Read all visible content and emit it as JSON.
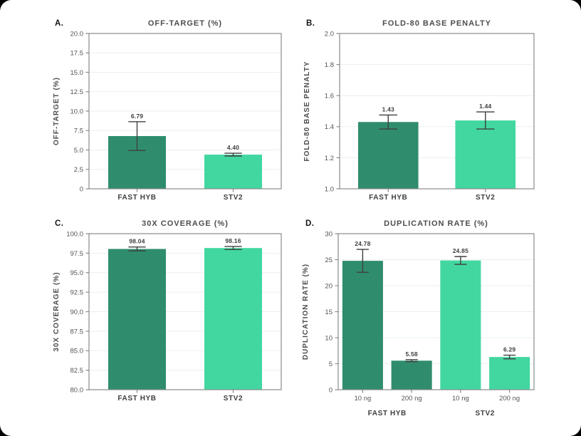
{
  "page": {
    "background": "#000000",
    "card_background": "#ffffff"
  },
  "colors": {
    "dark_green": "#2f8d6d",
    "light_green": "#42d7a0",
    "spine": "#8a8a8a",
    "grid": "#e9eff2",
    "error_bar": "#3f3f3f"
  },
  "chart_data": [
    {
      "panel": "A",
      "letter": "A.",
      "type": "bar",
      "title": "OFF-TARGET (%)",
      "ylabel": "OFF-TARGET (%)",
      "ylim": [
        0,
        20
      ],
      "grid": true,
      "bar_width_frac": 0.6,
      "yticks": [
        {
          "v": 0,
          "label": "0"
        },
        {
          "v": 2.5,
          "label": "2.5"
        },
        {
          "v": 5,
          "label": "5.0"
        },
        {
          "v": 7.5,
          "label": "7.5"
        },
        {
          "v": 10,
          "label": "10.0"
        },
        {
          "v": 12.5,
          "label": "12.5"
        },
        {
          "v": 15,
          "label": "15.0"
        },
        {
          "v": 17.5,
          "label": "17.5"
        },
        {
          "v": 20,
          "label": "20.0"
        }
      ],
      "bars": [
        {
          "category": "FAST HYB",
          "value": 6.79,
          "value_label": "6.79",
          "error": 1.85,
          "color": "dark_green"
        },
        {
          "category": "STV2",
          "value": 4.4,
          "value_label": "4.40",
          "error": 0.18,
          "color": "light_green"
        }
      ]
    },
    {
      "panel": "B",
      "letter": "B.",
      "type": "bar",
      "title": "FOLD-80 BASE PENALTY",
      "ylabel": "FOLD-80 BASE PENALTY",
      "ylim": [
        1.0,
        2.0
      ],
      "grid": true,
      "bar_width_frac": 0.62,
      "yticks": [
        {
          "v": 1.0,
          "label": "1.0"
        },
        {
          "v": 1.2,
          "label": "1.2"
        },
        {
          "v": 1.4,
          "label": "1.4"
        },
        {
          "v": 1.6,
          "label": "1.6"
        },
        {
          "v": 1.8,
          "label": "1.8"
        },
        {
          "v": 2.0,
          "label": "2.0"
        }
      ],
      "bars": [
        {
          "category": "FAST HYB",
          "value": 1.43,
          "value_label": "1.43",
          "error": 0.045,
          "color": "dark_green"
        },
        {
          "category": "STV2",
          "value": 1.44,
          "value_label": "1.44",
          "error": 0.055,
          "color": "light_green"
        }
      ]
    },
    {
      "panel": "C",
      "letter": "C.",
      "type": "bar",
      "title": "30X COVERAGE (%)",
      "ylabel": "30X COVERAGE (%)",
      "ylim": [
        80,
        100
      ],
      "grid": true,
      "bar_width_frac": 0.6,
      "yticks": [
        {
          "v": 80,
          "label": "80.0"
        },
        {
          "v": 82.5,
          "label": "82.5"
        },
        {
          "v": 85,
          "label": "85.0"
        },
        {
          "v": 87.5,
          "label": "87.5"
        },
        {
          "v": 90,
          "label": "90.0"
        },
        {
          "v": 92.5,
          "label": "92.5"
        },
        {
          "v": 95,
          "label": "95.0"
        },
        {
          "v": 97.5,
          "label": "97.5"
        },
        {
          "v": 100,
          "label": "100.0"
        }
      ],
      "bars": [
        {
          "category": "FAST HYB",
          "value": 98.04,
          "value_label": "98.04",
          "error": 0.25,
          "color": "dark_green"
        },
        {
          "category": "STV2",
          "value": 98.16,
          "value_label": "98.16",
          "error": 0.2,
          "color": "light_green"
        }
      ]
    },
    {
      "panel": "D",
      "letter": "D.",
      "type": "bar",
      "title": "DUPLICATION RATE (%)",
      "ylabel": "DUPLICATION RATE (%)",
      "ylim": [
        0,
        30
      ],
      "grid": true,
      "bar_width_frac": 0.83,
      "yticks": [
        {
          "v": 0,
          "label": "0"
        },
        {
          "v": 5,
          "label": "5"
        },
        {
          "v": 10,
          "label": "10"
        },
        {
          "v": 15,
          "label": "15"
        },
        {
          "v": 20,
          "label": "20"
        },
        {
          "v": 25,
          "label": "25"
        },
        {
          "v": 30,
          "label": "30"
        }
      ],
      "bars": [
        {
          "category": "10 ng",
          "value": 24.78,
          "value_label": "24.78",
          "error": 2.2,
          "color": "dark_green"
        },
        {
          "category": "200 ng",
          "value": 5.58,
          "value_label": "5.58",
          "error": 0.2,
          "color": "dark_green"
        },
        {
          "category": "10 ng",
          "value": 24.85,
          "value_label": "24.85",
          "error": 0.75,
          "color": "light_green"
        },
        {
          "category": "200 ng",
          "value": 6.29,
          "value_label": "6.29",
          "error": 0.35,
          "color": "light_green"
        }
      ],
      "groups": [
        {
          "label": "FAST HYB",
          "bars": [
            0,
            1
          ]
        },
        {
          "label": "STV2",
          "bars": [
            2,
            3
          ]
        }
      ]
    }
  ]
}
